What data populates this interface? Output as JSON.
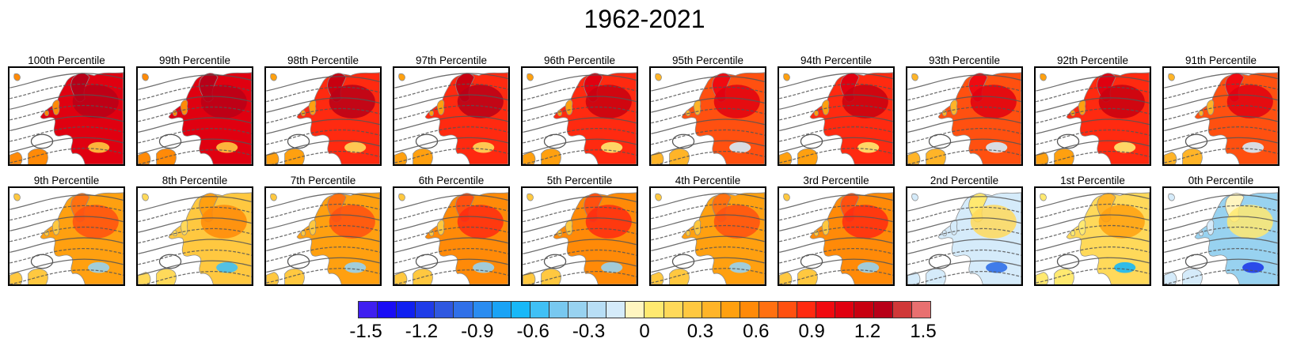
{
  "chart_data": {
    "type": "heatmap",
    "title": "1962-2021",
    "panels": [
      {
        "title": "100th Percentile",
        "anomaly": 1.0
      },
      {
        "title": "99th Percentile",
        "anomaly": 1.0
      },
      {
        "title": "98th Percentile",
        "anomaly": 0.9
      },
      {
        "title": "97th Percentile",
        "anomaly": 0.9
      },
      {
        "title": "96th Percentile",
        "anomaly": 0.8
      },
      {
        "title": "95th Percentile",
        "anomaly": 0.7
      },
      {
        "title": "94th Percentile",
        "anomaly": 0.8
      },
      {
        "title": "93th Percentile",
        "anomaly": 0.7
      },
      {
        "title": "92th Percentile",
        "anomaly": 0.8
      },
      {
        "title": "91th Percentile",
        "anomaly": 0.7
      },
      {
        "title": "9th Percentile",
        "anomaly": 0.4
      },
      {
        "title": "8th Percentile",
        "anomaly": 0.2
      },
      {
        "title": "7th Percentile",
        "anomaly": 0.4
      },
      {
        "title": "6th Percentile",
        "anomaly": 0.5
      },
      {
        "title": "5th Percentile",
        "anomaly": 0.5
      },
      {
        "title": "4th Percentile",
        "anomaly": 0.4
      },
      {
        "title": "3rd Percentile",
        "anomaly": 0.5
      },
      {
        "title": "2nd Percentile",
        "anomaly": -0.2
      },
      {
        "title": "1st Percentile",
        "anomaly": 0.1
      },
      {
        "title": "0th Percentile",
        "anomaly": -0.3
      }
    ],
    "colorbar": {
      "ticks": [
        "-1.5",
        "-1.2",
        "-0.9",
        "-0.6",
        "-0.3",
        "0",
        "0.3",
        "0.6",
        "0.9",
        "1.2",
        "1.5"
      ],
      "range": [
        -1.5,
        1.5
      ],
      "colors": [
        "#3f1ff0",
        "#1a0df5",
        "#1020f0",
        "#1f3ce8",
        "#2f58e0",
        "#3070e8",
        "#2a8cf0",
        "#1aa3f5",
        "#18b8f8",
        "#40c0f5",
        "#78c8f0",
        "#98d2f0",
        "#b8def5",
        "#d5ebfa",
        "#fff5c0",
        "#ffe970",
        "#ffd95a",
        "#ffc840",
        "#ffb428",
        "#ffa010",
        "#ff8a08",
        "#ff7010",
        "#ff5010",
        "#ff2a10",
        "#f00a10",
        "#e00010",
        "#c80010",
        "#b80018",
        "#d03838",
        "#e87070"
      ]
    }
  }
}
